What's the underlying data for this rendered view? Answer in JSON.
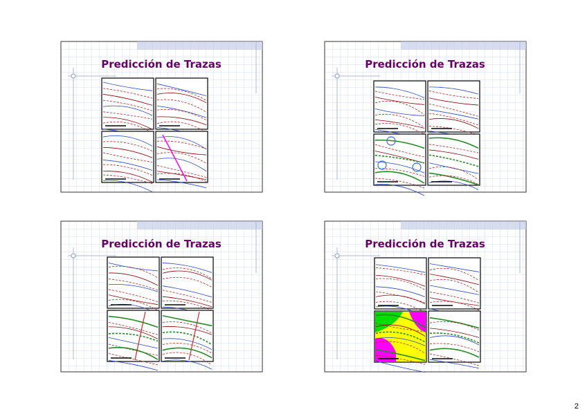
{
  "slides": [
    {
      "title": "Predicción de Trazas"
    },
    {
      "title": "Predicción de Trazas"
    },
    {
      "title": "Predicción de Trazas"
    },
    {
      "title": "Predicción de Trazas"
    }
  ],
  "page_number": "2"
}
